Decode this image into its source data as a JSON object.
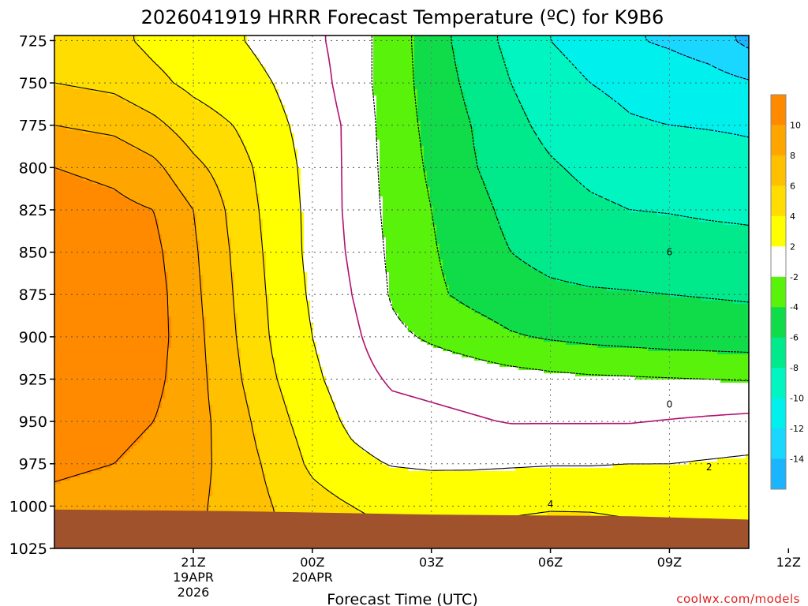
{
  "chart_data": {
    "type": "contour",
    "title": "2026041919 HRRR Forecast Temperature (ºC) for K9B6",
    "xlabel": "Forecast Time (UTC)",
    "ylabel": "",
    "credit": "coolwx.com/models",
    "y_axis": {
      "scale": "pressure (hPa), inverted",
      "ylim": [
        1025,
        722
      ],
      "ticks": [
        "725",
        "750",
        "775",
        "800",
        "825",
        "850",
        "875",
        "900",
        "925",
        "950",
        "975",
        "1000",
        "1025"
      ]
    },
    "x_axis": {
      "unit": "hours after 2026-04-19 19Z",
      "xlim": [
        -1.5,
        16.0
      ],
      "ticks": [
        {
          "h": 2,
          "label": "21Z",
          "sub1": "19APR",
          "sub2": "2026"
        },
        {
          "h": 5,
          "label": "00Z",
          "sub1": "20APR",
          "sub2": ""
        },
        {
          "h": 8,
          "label": "03Z",
          "sub1": "",
          "sub2": ""
        },
        {
          "h": 11,
          "label": "06Z",
          "sub1": "",
          "sub2": ""
        },
        {
          "h": 14,
          "label": "09Z",
          "sub1": "",
          "sub2": ""
        },
        {
          "h": 17,
          "label": "12Z",
          "sub1": "",
          "sub2": ""
        }
      ]
    },
    "grid": true,
    "colorbar": {
      "bins": [
        {
          "lo": -16,
          "hi": -14,
          "color": "#1ab4ff"
        },
        {
          "lo": -14,
          "hi": -12,
          "color": "#1ad7ff"
        },
        {
          "lo": -12,
          "hi": -10,
          "color": "#00f0ee"
        },
        {
          "lo": -10,
          "hi": -8,
          "color": "#00f5c0"
        },
        {
          "lo": -8,
          "hi": -6,
          "color": "#00e98a"
        },
        {
          "lo": -6,
          "hi": -4,
          "color": "#10dc4a"
        },
        {
          "lo": -4,
          "hi": -2,
          "color": "#58f20a"
        },
        {
          "lo": -2,
          "hi": 2,
          "color": "#ffffff"
        },
        {
          "lo": 2,
          "hi": 4,
          "color": "#ffff00"
        },
        {
          "lo": 4,
          "hi": 6,
          "color": "#ffdd00"
        },
        {
          "lo": 6,
          "hi": 8,
          "color": "#ffc000"
        },
        {
          "lo": 8,
          "hi": 10,
          "color": "#ffa500"
        },
        {
          "lo": 10,
          "hi": 12,
          "color": "#ff8a00"
        }
      ],
      "labels": [
        "10",
        "8",
        "6",
        "4",
        "2",
        "-2",
        "-4",
        "-6",
        "-8",
        "-10",
        "-12",
        "-14"
      ]
    },
    "contour_labels": [
      {
        "text": "6",
        "t": 14,
        "p": 850
      },
      {
        "text": "0",
        "t": 14,
        "p": 940
      },
      {
        "text": "2",
        "t": 15,
        "p": 977
      },
      {
        "text": "4",
        "t": 11,
        "p": 999
      }
    ],
    "ground": {
      "color": "#a0522d",
      "surface": [
        [
          -1.5,
          1002
        ],
        [
          3,
          1003
        ],
        [
          8,
          1005
        ],
        [
          13,
          1006
        ],
        [
          16,
          1008
        ]
      ]
    },
    "field": {
      "times": [
        -1.5,
        0,
        1,
        2,
        3,
        4,
        5,
        6,
        7,
        8,
        9,
        10,
        11,
        12,
        13,
        14,
        15,
        16
      ],
      "levels": [
        725,
        750,
        775,
        800,
        825,
        850,
        875,
        900,
        925,
        950,
        975,
        1000,
        1025
      ],
      "temperature": [
        [
          5,
          4.5,
          3.5,
          2.8,
          2.2,
          1.5,
          0.5,
          -1,
          -3,
          -5,
          -7,
          -8.5,
          -10,
          -11,
          -11.8,
          -12.3,
          -13,
          -14.5
        ],
        [
          6,
          5.5,
          4.5,
          3.5,
          2.8,
          2,
          1,
          -1,
          -3,
          -4.8,
          -6.5,
          -8,
          -9,
          -10,
          -10.5,
          -10.8,
          -11.2,
          -11.8
        ],
        [
          8,
          7.5,
          6.5,
          5,
          4,
          2.5,
          1.3,
          -0.5,
          -3,
          -4.5,
          -6,
          -7.5,
          -8.5,
          -9.2,
          -9.8,
          -10,
          -10.1,
          -10.2
        ],
        [
          10,
          9.5,
          8.5,
          6.5,
          5,
          3,
          1.4,
          -0.5,
          -2.8,
          -4.3,
          -5.8,
          -7,
          -7.8,
          -8.4,
          -8.7,
          -8.9,
          -9.2,
          -9.5
        ],
        [
          11,
          10.5,
          10,
          8,
          5.5,
          3.2,
          1.5,
          -0.5,
          -2.6,
          -4,
          -5.3,
          -6.5,
          -7.2,
          -7.7,
          -8,
          -8.1,
          -8.3,
          -8.4
        ],
        [
          11.5,
          11,
          10.5,
          8.3,
          5.8,
          3.4,
          1.5,
          -0.3,
          -2.4,
          -3.8,
          -5,
          -6,
          -6.6,
          -6.9,
          -6.9,
          -7,
          -7.1,
          -7.3
        ],
        [
          11.5,
          11.3,
          10.8,
          8.5,
          6,
          3.6,
          1.7,
          0,
          -2.2,
          -3.6,
          -4.5,
          -5.2,
          -5.6,
          -5.8,
          -5.9,
          -6,
          -6.1,
          -6.2
        ],
        [
          11.5,
          11.3,
          10.8,
          8.7,
          6.2,
          3.8,
          2,
          0.5,
          -1.5,
          -2.3,
          -3,
          -3.8,
          -4.2,
          -4.5,
          -4.7,
          -4.9,
          -5,
          -5.1
        ],
        [
          11.2,
          11,
          10.5,
          8.8,
          6.5,
          4.2,
          2.4,
          1,
          -0.3,
          -0.6,
          -0.9,
          -1.2,
          -1.5,
          -1.7,
          -1.8,
          -1.9,
          -2,
          -2.1
        ],
        [
          10.8,
          10.5,
          10,
          8.8,
          7,
          4.8,
          3,
          1.6,
          0.8,
          0.5,
          0.2,
          -0.1,
          -0.1,
          -0.1,
          -0.1,
          0.1,
          0.3,
          0.5
        ],
        [
          10.3,
          10,
          9.5,
          8.7,
          7.2,
          5.5,
          3.6,
          2.5,
          1.9,
          1.7,
          1.7,
          1.8,
          1.9,
          1.9,
          2,
          2,
          2.2,
          2.4
        ],
        [
          9.6,
          9.3,
          8.9,
          8.4,
          7.3,
          6,
          4.8,
          4,
          3.6,
          3.6,
          3.7,
          3.8,
          3.9,
          3.9,
          3.8,
          3.7,
          3.7,
          3.6
        ],
        [
          9.2,
          9,
          8.6,
          8.2,
          7.3,
          6.3,
          5.3,
          4.7,
          4.4,
          4.4,
          4.5,
          4.6,
          4.7,
          4.6,
          4.5,
          4.4,
          4.4,
          4.3
        ]
      ]
    }
  }
}
